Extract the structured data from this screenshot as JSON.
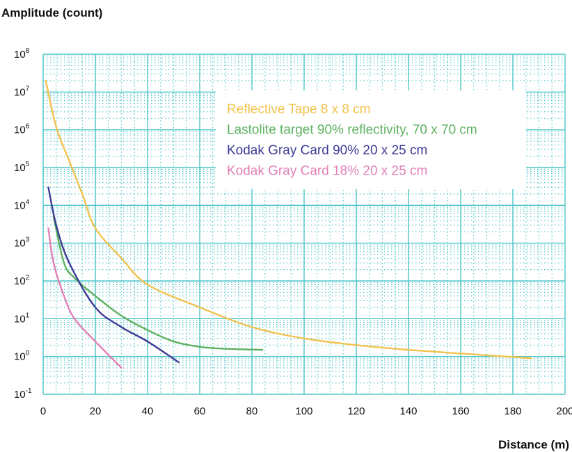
{
  "chart_data": {
    "type": "line",
    "title": "",
    "ylabel": "Amplitude (count)",
    "xlabel": "Distance (m)",
    "xlim": [
      0,
      200
    ],
    "ylim_log10": [
      -1,
      8
    ],
    "y_scale": "log",
    "grid": true,
    "legend_position": "top-center",
    "x_ticks": [
      {
        "value": 0,
        "label": "0"
      },
      {
        "value": 20,
        "label": "20"
      },
      {
        "value": 40,
        "label": "40"
      },
      {
        "value": 60,
        "label": "60"
      },
      {
        "value": 80,
        "label": "80"
      },
      {
        "value": 100,
        "label": "100"
      },
      {
        "value": 120,
        "label": "120"
      },
      {
        "value": 140,
        "label": "140"
      },
      {
        "value": 160,
        "label": "160"
      },
      {
        "value": 180,
        "label": "180"
      },
      {
        "value": 200,
        "label": "200"
      }
    ],
    "y_ticks": [
      {
        "exp": 8,
        "base": "10",
        "sup": "8"
      },
      {
        "exp": 7,
        "base": "10",
        "sup": "7"
      },
      {
        "exp": 6,
        "base": "10",
        "sup": "6"
      },
      {
        "exp": 5,
        "base": "10",
        "sup": "5"
      },
      {
        "exp": 4,
        "base": "10",
        "sup": "4"
      },
      {
        "exp": 3,
        "base": "10",
        "sup": "3"
      },
      {
        "exp": 2,
        "base": "10",
        "sup": "2"
      },
      {
        "exp": 1,
        "base": "10",
        "sup": "1"
      },
      {
        "exp": 0,
        "base": "10",
        "sup": "0"
      },
      {
        "exp": -1,
        "base": "10",
        "sup": "-1"
      }
    ],
    "series": [
      {
        "name": "Reflective Tape 8 x 8 cm",
        "color": "#f2c24e",
        "points": [
          [
            1,
            20000000
          ],
          [
            5,
            1200000
          ],
          [
            10,
            150000
          ],
          [
            15,
            20000
          ],
          [
            20,
            2500
          ],
          [
            30,
            400
          ],
          [
            40,
            80
          ],
          [
            60,
            20
          ],
          [
            80,
            6
          ],
          [
            100,
            3
          ],
          [
            120,
            2
          ],
          [
            140,
            1.5
          ],
          [
            160,
            1.2
          ],
          [
            187,
            0.9
          ]
        ]
      },
      {
        "name": "Lastolite target 90% reflectivity, 70 x 70 cm",
        "color": "#5cb15f",
        "points": [
          [
            4,
            5000
          ],
          [
            8,
            300
          ],
          [
            12,
            120
          ],
          [
            20,
            40
          ],
          [
            30,
            12
          ],
          [
            40,
            5
          ],
          [
            50,
            2.5
          ],
          [
            60,
            1.8
          ],
          [
            70,
            1.6
          ],
          [
            84,
            1.5
          ]
        ]
      },
      {
        "name": "Kodak Gray Card 90% 20 x 25 cm",
        "color": "#3d3b96",
        "points": [
          [
            2,
            30000
          ],
          [
            5,
            3000
          ],
          [
            10,
            300
          ],
          [
            20,
            20
          ],
          [
            30,
            6
          ],
          [
            40,
            2.5
          ],
          [
            52,
            0.7
          ]
        ]
      },
      {
        "name": "Kodak Gray Card 18% 20 x 25 cm",
        "color": "#e27fb7",
        "points": [
          [
            2,
            2500
          ],
          [
            4,
            300
          ],
          [
            8,
            40
          ],
          [
            12,
            10
          ],
          [
            20,
            2.5
          ],
          [
            30,
            0.5
          ]
        ]
      }
    ]
  }
}
